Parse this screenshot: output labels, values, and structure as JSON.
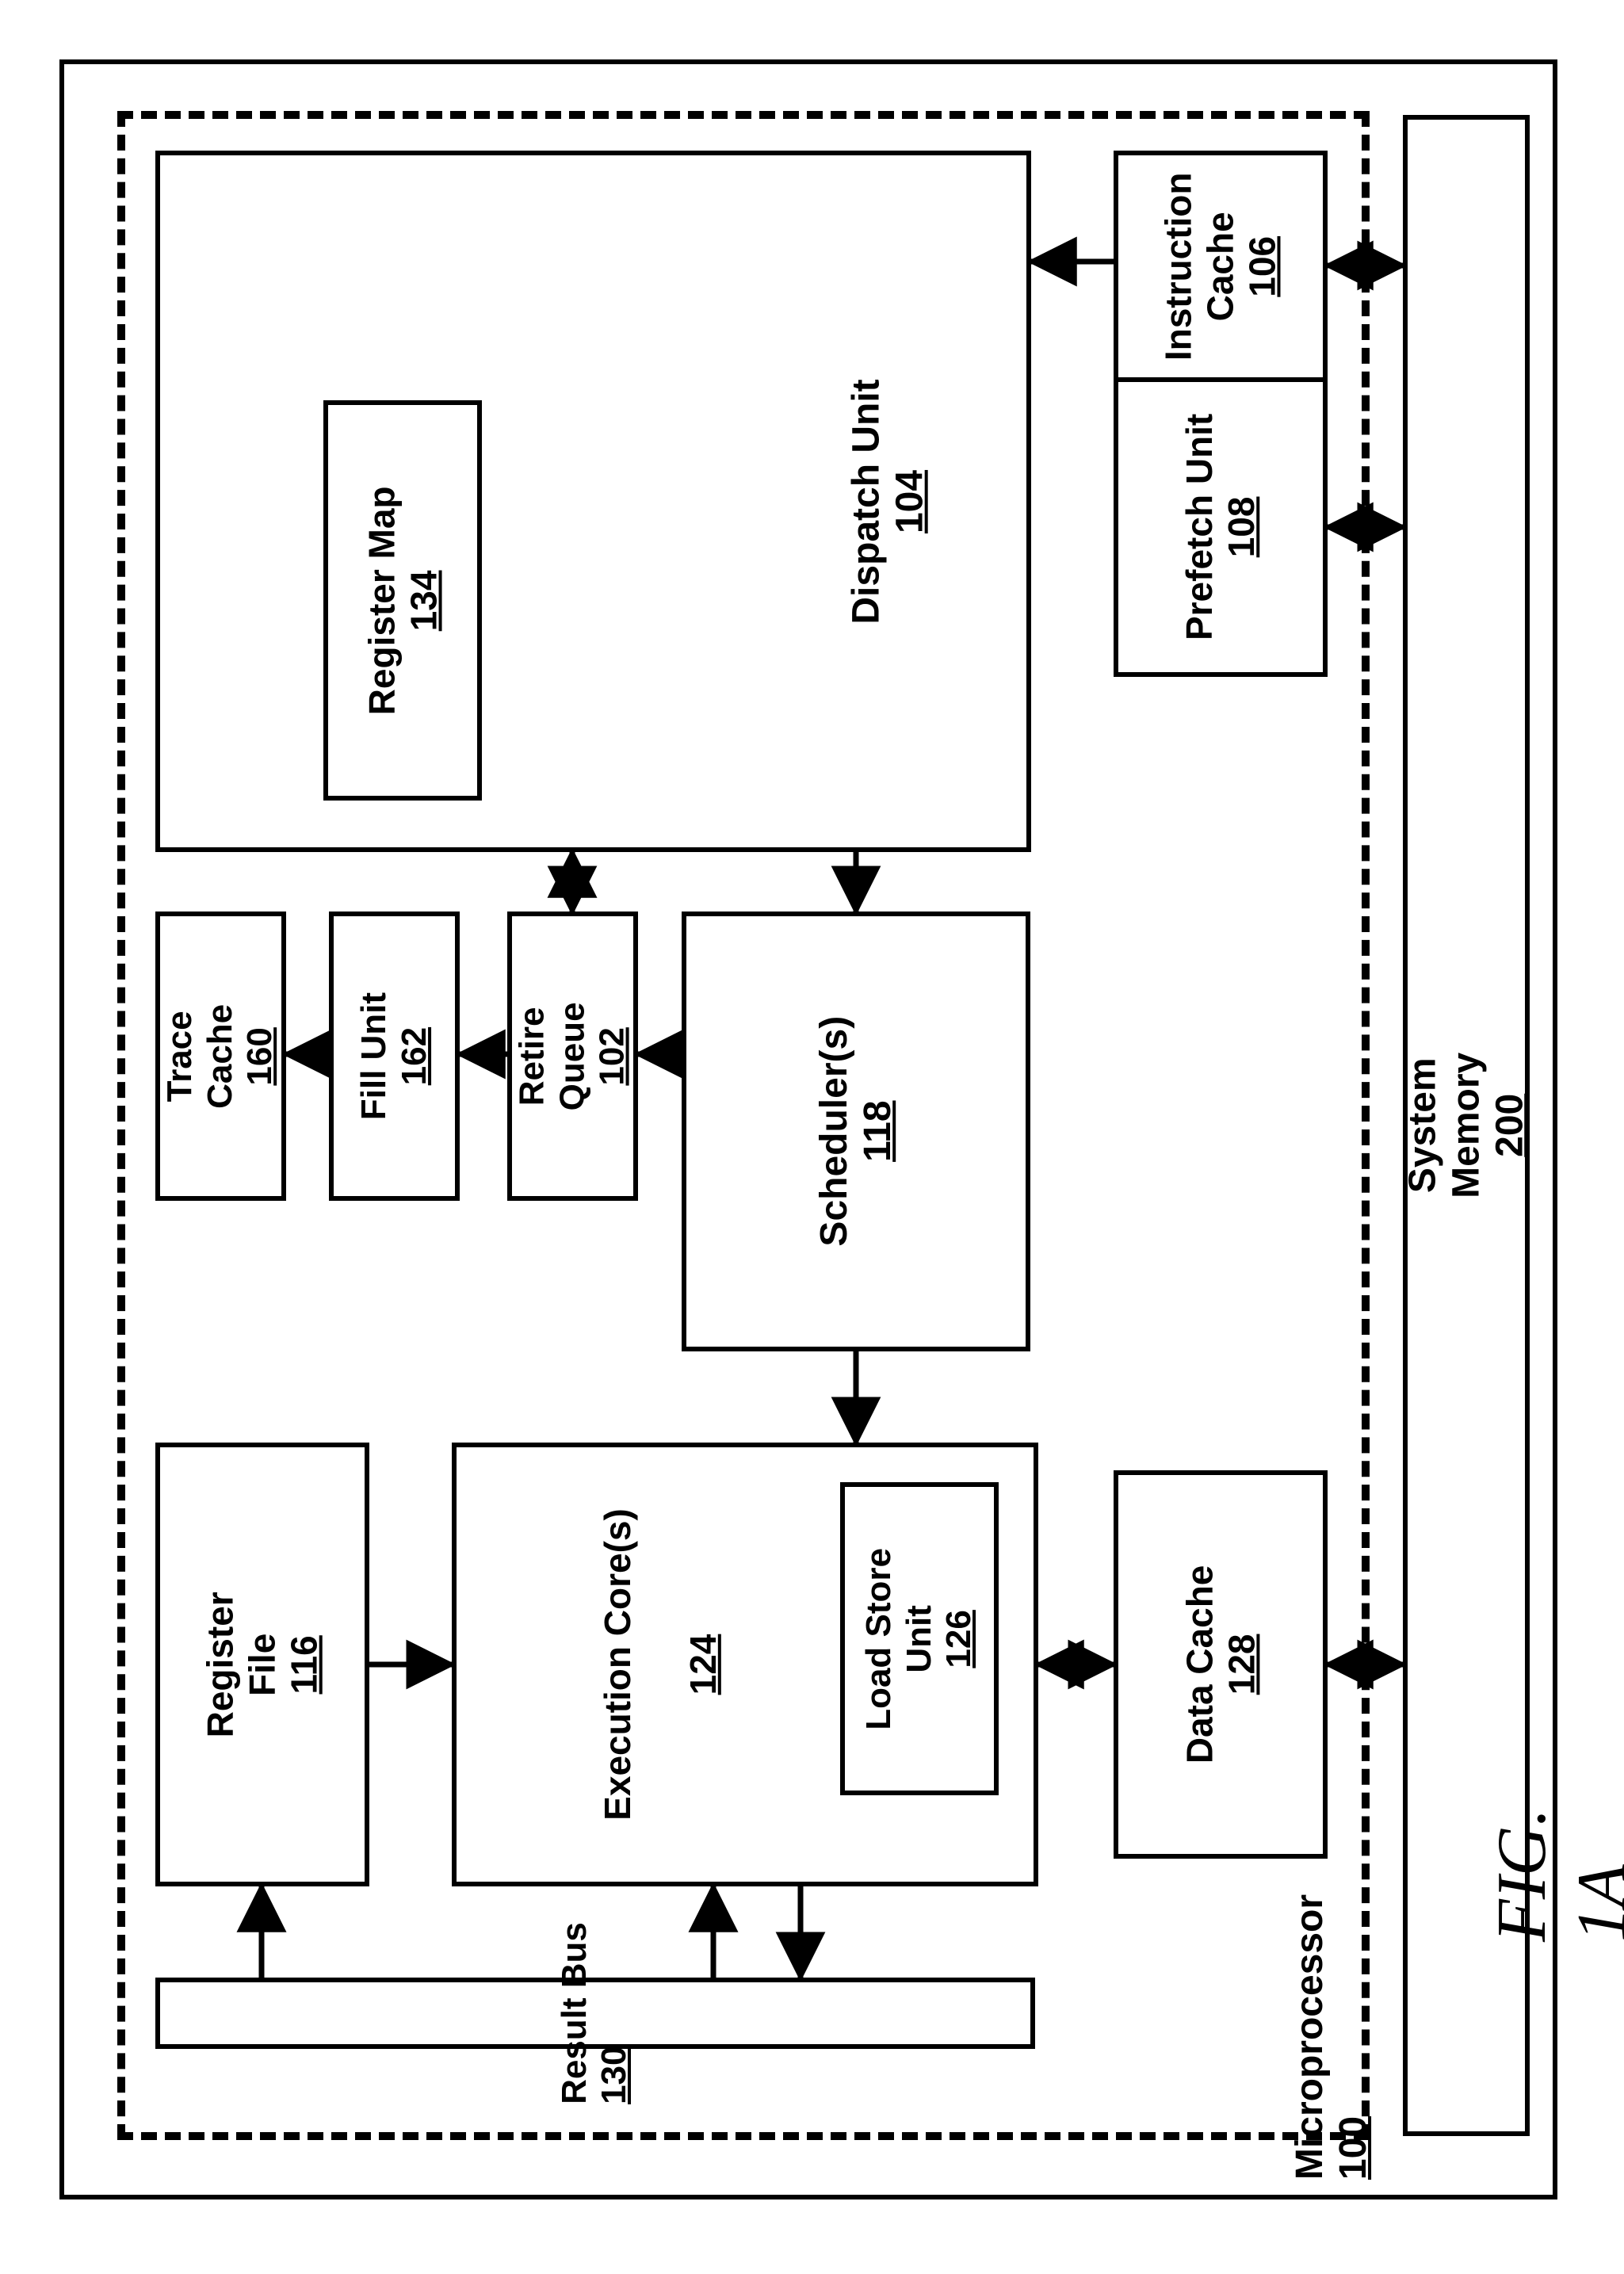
{
  "diagram": {
    "type": "block-diagram",
    "figure_caption": "FIG. 1A",
    "border": {
      "outer_stroke": 6,
      "dash_stroke": 10,
      "color": "#000000"
    },
    "font": {
      "label_size": 48,
      "caption_size": 80,
      "weight": 600,
      "caption_style": "italic"
    },
    "arrow": {
      "stroke": 7,
      "head_len": 34,
      "head_w": 28
    }
  },
  "boxes": {
    "system_memory": {
      "label": "System\nMemory",
      "num": "200"
    },
    "microprocessor": {
      "label": "Microprocessor",
      "num": "100"
    },
    "instr_cache": {
      "label": "Instruction\nCache",
      "num": "106"
    },
    "prefetch": {
      "label": "Prefetch Unit",
      "num": "108"
    },
    "dispatch": {
      "label": "Dispatch Unit",
      "num": "104"
    },
    "register_map": {
      "label": "Register Map",
      "num": "134"
    },
    "trace_cache": {
      "label": "Trace\nCache",
      "num": "160"
    },
    "fill_unit": {
      "label": "Fill Unit",
      "num": "162"
    },
    "retire_queue": {
      "label": "Retire\nQueue",
      "num": "102"
    },
    "scheduler": {
      "label": "Scheduler(s)",
      "num": "118"
    },
    "register_file": {
      "label": "Register\nFile",
      "num": "116"
    },
    "execution_core": {
      "label": "Execution Core(s)",
      "num": "124"
    },
    "load_store": {
      "label": "Load Store\nUnit",
      "num": "126"
    },
    "data_cache": {
      "label": "Data Cache",
      "num": "128"
    },
    "result_bus": {
      "label": "Result Bus",
      "num": "130"
    }
  }
}
